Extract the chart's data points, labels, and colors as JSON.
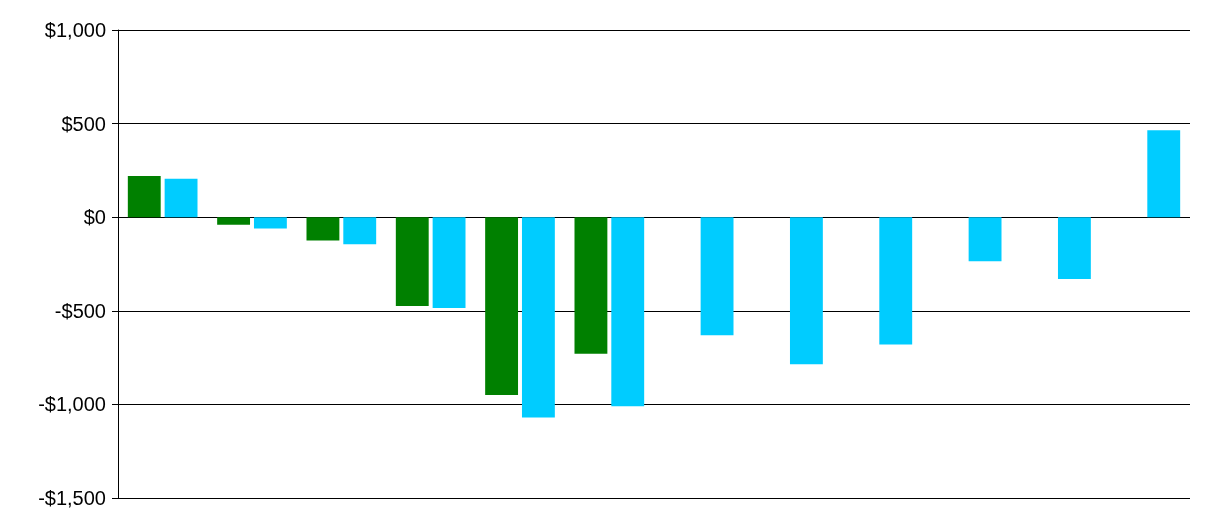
{
  "chart_data": {
    "type": "bar",
    "categories": [
      null,
      null,
      null,
      null,
      null,
      null,
      null,
      null,
      null,
      null,
      null,
      null
    ],
    "series": [
      {
        "color": "#008000",
        "values": [
          220,
          -40,
          -125,
          -475,
          -950,
          -730,
          null,
          null,
          null,
          null,
          null,
          null
        ]
      },
      {
        "color": "#00ccff",
        "values": [
          205,
          -60,
          -145,
          -485,
          -1070,
          -1010,
          -630,
          -785,
          -680,
          -235,
          -330,
          465
        ]
      }
    ],
    "ylim": [
      -1500,
      1000
    ],
    "yticks": [
      {
        "value": -1500,
        "label": "-$1,500"
      },
      {
        "value": -1000,
        "label": "-$1,000"
      },
      {
        "value": -500,
        "label": "-$500"
      },
      {
        "value": 0,
        "label": "$0"
      },
      {
        "value": 500,
        "label": "$500"
      },
      {
        "value": 1000,
        "label": "$1,000"
      }
    ],
    "grid": "y"
  }
}
